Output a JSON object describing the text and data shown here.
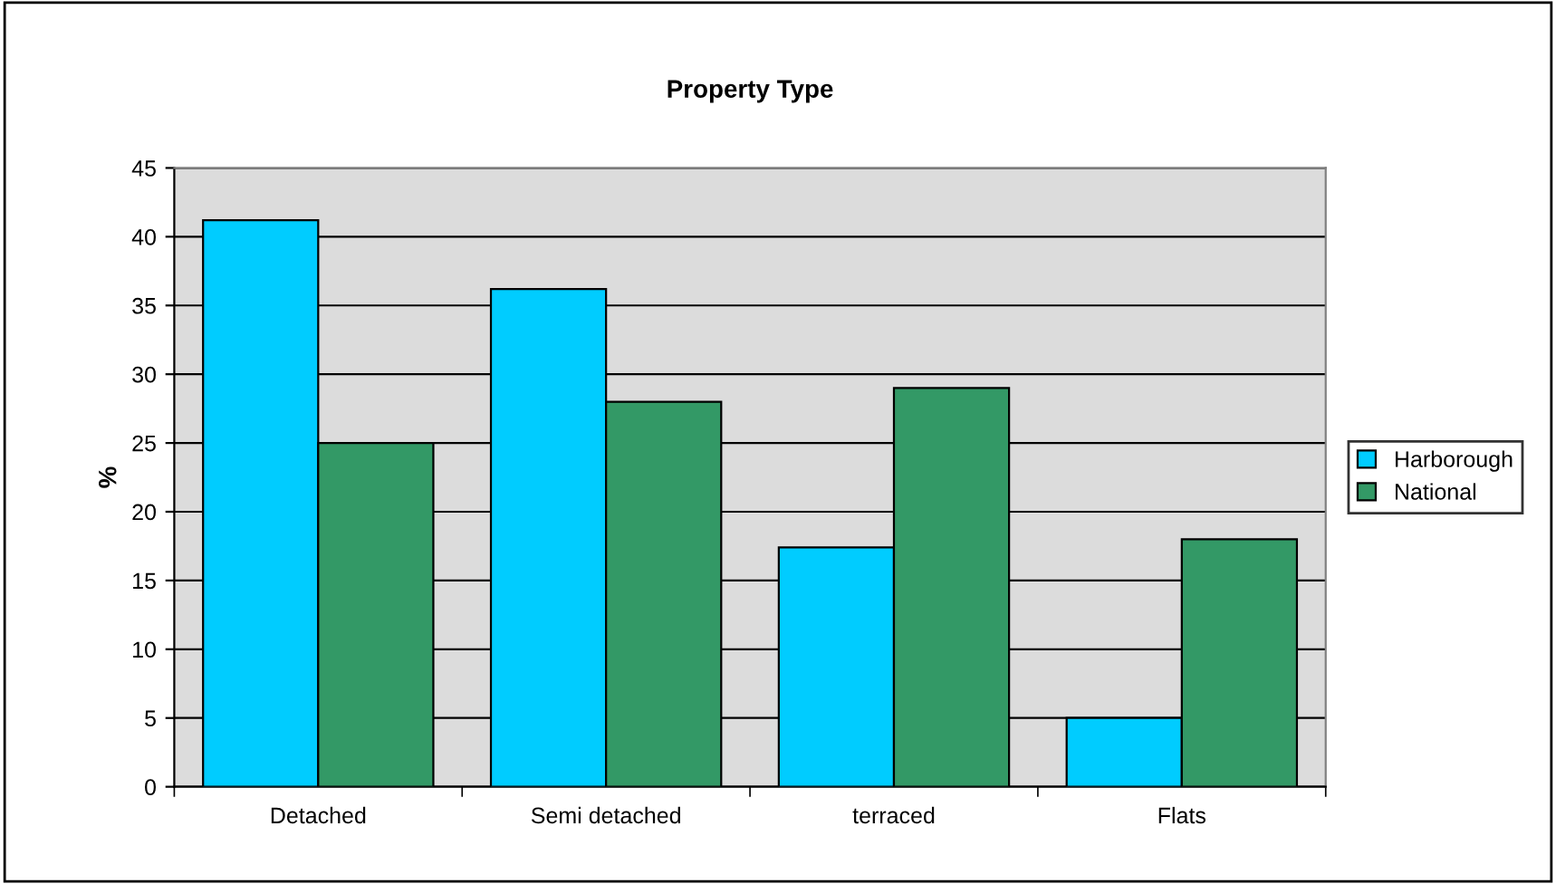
{
  "chart_data": {
    "type": "bar",
    "title": "Property Type",
    "ylabel": "%",
    "categories": [
      "Detached",
      "Semi detached",
      "terraced",
      "Flats"
    ],
    "series": [
      {
        "name": "Harborough",
        "color": "#00ccff",
        "values": [
          41.2,
          36.2,
          17.4,
          5
        ]
      },
      {
        "name": "National",
        "color": "#339966",
        "values": [
          25,
          28,
          29,
          18
        ]
      }
    ],
    "ylim": [
      0,
      45
    ],
    "yticks": [
      0,
      5,
      10,
      15,
      20,
      25,
      30,
      35,
      40,
      45
    ],
    "grid": "y",
    "legend": "right"
  }
}
